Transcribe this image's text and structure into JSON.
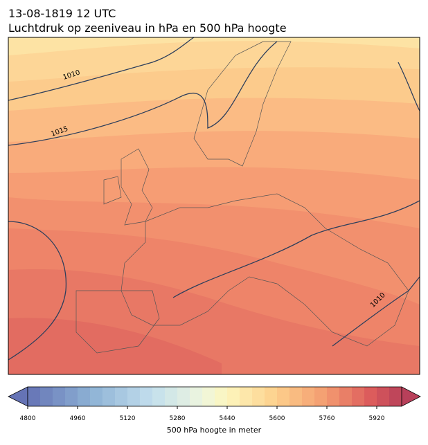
{
  "title_lines": [
    "13-08-1819 12 UTC",
    "Luchtdruk op zeeniveau in hPa en 500 hPa hoogte"
  ],
  "map": {
    "contour_labels": [
      "1010",
      "1015",
      "1010"
    ]
  },
  "colorbar": {
    "label": "500 hPa hoogte in meter",
    "lim": [
      4800,
      6000
    ],
    "level_step": 40,
    "ticks": [
      4800,
      4960,
      5120,
      5280,
      5440,
      5600,
      5760,
      5920
    ],
    "color_stops": [
      [
        4800,
        "#6573b5"
      ],
      [
        5000,
        "#8db1d4"
      ],
      [
        5200,
        "#c3dfed"
      ],
      [
        5360,
        "#eef6de"
      ],
      [
        5440,
        "#fdf6bd"
      ],
      [
        5600,
        "#fdcf8b"
      ],
      [
        5760,
        "#f39a70"
      ],
      [
        5900,
        "#dc5c5c"
      ],
      [
        6000,
        "#b8405a"
      ]
    ]
  }
}
